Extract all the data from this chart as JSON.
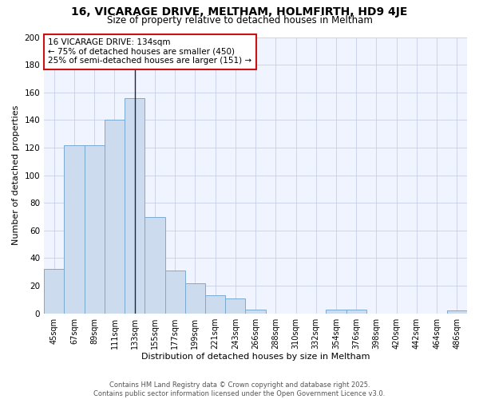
{
  "title": "16, VICARAGE DRIVE, MELTHAM, HOLMFIRTH, HD9 4JE",
  "subtitle": "Size of property relative to detached houses in Meltham",
  "xlabel": "Distribution of detached houses by size in Meltham",
  "ylabel": "Number of detached properties",
  "categories": [
    "45sqm",
    "67sqm",
    "89sqm",
    "111sqm",
    "133sqm",
    "155sqm",
    "177sqm",
    "199sqm",
    "221sqm",
    "243sqm",
    "266sqm",
    "288sqm",
    "310sqm",
    "332sqm",
    "354sqm",
    "376sqm",
    "398sqm",
    "420sqm",
    "442sqm",
    "464sqm",
    "486sqm"
  ],
  "values": [
    32,
    122,
    122,
    140,
    156,
    70,
    31,
    22,
    13,
    11,
    3,
    0,
    0,
    0,
    3,
    3,
    0,
    0,
    0,
    0,
    2
  ],
  "bar_color": "#ccdcee",
  "bar_edge_color": "#7aaad0",
  "vline_index": 4,
  "vline_color": "#222244",
  "annotation_text": "16 VICARAGE DRIVE: 134sqm\n← 75% of detached houses are smaller (450)\n25% of semi-detached houses are larger (151) →",
  "annotation_box_facecolor": "#ffffff",
  "annotation_box_edgecolor": "#cc1111",
  "ylim": [
    0,
    200
  ],
  "yticks": [
    0,
    20,
    40,
    60,
    80,
    100,
    120,
    140,
    160,
    180,
    200
  ],
  "footer_text": "Contains HM Land Registry data © Crown copyright and database right 2025.\nContains public sector information licensed under the Open Government Licence v3.0.",
  "background_color": "#ffffff",
  "plot_bg_color": "#f0f4ff",
  "grid_color": "#c8d0e8"
}
